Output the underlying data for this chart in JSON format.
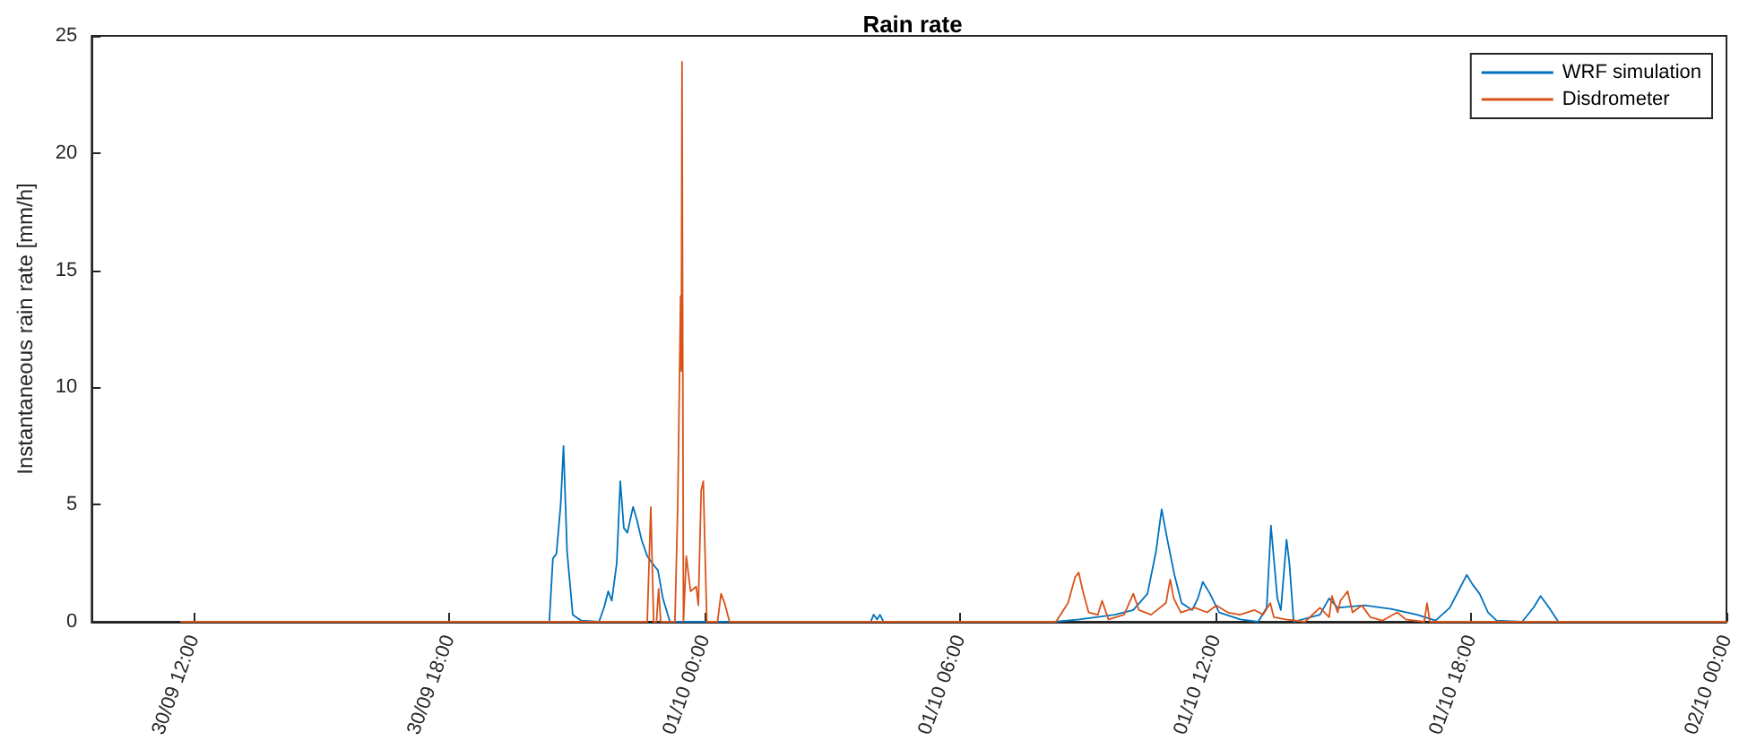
{
  "chart_data": {
    "type": "line",
    "title": "Rain rate",
    "ylabel": "Instantaneous rain rate [mm/h]",
    "xlim": [
      "--09-30T09:36",
      "--10-02T00:00"
    ],
    "xticks": [
      {
        "value": "--09-30T12:00",
        "label": "30/09 12:00"
      },
      {
        "value": "--09-30T18:00",
        "label": "30/09 18:00"
      },
      {
        "value": "--10-01T00:00",
        "label": "01/10 00:00"
      },
      {
        "value": "--10-01T06:00",
        "label": "01/10 06:00"
      },
      {
        "value": "--10-01T12:00",
        "label": "01/10 12:00"
      },
      {
        "value": "--10-01T18:00",
        "label": "01/10 18:00"
      },
      {
        "value": "--10-02T00:00",
        "label": "02/10 00:00"
      }
    ],
    "ylim": [
      0,
      25
    ],
    "yticks": [
      0,
      5,
      10,
      15,
      20,
      25
    ],
    "grid": false,
    "legend": "top right",
    "series": [
      {
        "name": "WRF simulation",
        "color": "#0072bd",
        "x": [
          "--09-30T11:42",
          "--09-30T20:21",
          "--09-30T20:26",
          "--09-30T20:31",
          "--09-30T20:37",
          "--09-30T20:41",
          "--09-30T20:46",
          "--09-30T20:54",
          "--09-30T21:06",
          "--09-30T21:31",
          "--09-30T21:38",
          "--09-30T21:44",
          "--09-30T21:49",
          "--09-30T21:56",
          "--09-30T22:01",
          "--09-30T22:06",
          "--09-30T22:11",
          "--09-30T22:19",
          "--09-30T22:24",
          "--09-30T22:31",
          "--09-30T22:39",
          "--09-30T22:46",
          "--09-30T22:54",
          "--09-30T23:01",
          "--09-30T23:11",
          "--10-01T03:54",
          "--10-01T03:58",
          "--10-01T04:03",
          "--10-01T04:07",
          "--10-01T04:12",
          "--10-01T08:13",
          "--10-01T08:48",
          "--10-01T09:38",
          "--10-01T10:04",
          "--10-01T10:24",
          "--10-01T10:36",
          "--10-01T10:44",
          "--10-01T10:52",
          "--10-01T11:02",
          "--10-01T11:12",
          "--10-01T11:27",
          "--10-01T11:35",
          "--10-01T11:42",
          "--10-01T11:52",
          "--10-01T12:05",
          "--10-01T12:35",
          "--10-01T13:00",
          "--10-01T13:12",
          "--10-01T13:18",
          "--10-01T13:27",
          "--10-01T13:32",
          "--10-01T13:40",
          "--10-01T13:44",
          "--10-01T13:50",
          "--10-01T14:27",
          "--10-01T14:40",
          "--10-01T14:52",
          "--10-01T15:30",
          "--10-01T16:07",
          "--10-01T16:44",
          "--10-01T17:10",
          "--10-01T17:30",
          "--10-01T17:42",
          "--10-01T17:54",
          "--10-01T18:02",
          "--10-01T18:12",
          "--10-01T18:24",
          "--10-01T18:36",
          "--10-01T19:12",
          "--10-01T19:28",
          "--10-01T19:38",
          "--10-01T19:50",
          "--10-01T20:03",
          "--10-02T00:00"
        ],
        "values": [
          0,
          0,
          2.7,
          2.9,
          5,
          7.5,
          3,
          0.3,
          0.05,
          0,
          0.6,
          1.3,
          0.9,
          2.5,
          6,
          4,
          3.8,
          4.9,
          4.4,
          3.5,
          2.8,
          2.5,
          2.2,
          1,
          0,
          0,
          0.3,
          0.1,
          0.3,
          0,
          0,
          0.1,
          0.3,
          0.5,
          1.2,
          3,
          4.8,
          3.5,
          2,
          0.8,
          0.5,
          1,
          1.7,
          1.2,
          0.4,
          0.1,
          0,
          0.6,
          4.1,
          1,
          0.5,
          3.5,
          2.5,
          0,
          0.3,
          1,
          0.6,
          0.7,
          0.55,
          0.3,
          0.05,
          0.6,
          1.3,
          2,
          1.6,
          1.2,
          0.4,
          0.05,
          0,
          0.6,
          1.1,
          0.6,
          0,
          0
        ]
      },
      {
        "name": "Disdrometer",
        "color": "#d95319",
        "x": [
          "--09-30T11:42",
          "--09-30T22:39",
          "--09-30T22:44",
          "--09-30T22:48",
          "--09-30T22:52",
          "--09-30T22:55",
          "--09-30T22:58",
          "--09-30T23:18",
          "--09-30T23:22",
          "--09-30T23:26",
          "--09-30T23:27",
          "--09-30T23:28",
          "--09-30T23:30",
          "--09-30T23:34",
          "--09-30T23:40",
          "--09-30T23:48",
          "--09-30T23:51",
          "--09-30T23:55",
          "--09-30T23:58",
          "--10-01T00:00",
          "--10-01T00:03",
          "--10-01T00:18",
          "--10-01T00:23",
          "--10-01T00:28",
          "--10-01T00:35",
          "--10-01T08:15",
          "--10-01T08:32",
          "--10-01T08:42",
          "--10-01T08:47",
          "--10-01T08:53",
          "--10-01T09:01",
          "--10-01T09:14",
          "--10-01T09:20",
          "--10-01T09:29",
          "--10-01T09:51",
          "--10-01T10:04",
          "--10-01T10:12",
          "--10-01T10:29",
          "--10-01T10:50",
          "--10-01T10:56",
          "--10-01T11:01",
          "--10-01T11:11",
          "--10-01T11:31",
          "--10-01T11:48",
          "--10-01T12:01",
          "--10-01T12:17",
          "--10-01T12:34",
          "--10-01T12:55",
          "--10-01T13:07",
          "--10-01T13:17",
          "--10-01T13:22",
          "--10-01T13:39",
          "--10-01T14:06",
          "--10-01T14:27",
          "--10-01T14:40",
          "--10-01T14:44",
          "--10-01T14:52",
          "--10-01T14:56",
          "--10-01T15:06",
          "--10-01T15:13",
          "--10-01T15:26",
          "--10-01T15:38",
          "--10-01T15:55",
          "--10-01T16:16",
          "--10-01T16:28",
          "--10-01T16:54",
          "--10-01T16:58",
          "--10-01T17:02",
          "--10-02T00:00"
        ],
        "values": [
          0,
          0,
          4.9,
          0,
          0,
          1.4,
          0,
          0,
          5,
          13.9,
          10.7,
          23.9,
          0,
          2.8,
          1.3,
          1.5,
          0.7,
          5.6,
          6,
          3.5,
          0,
          0,
          1.2,
          0.8,
          0,
          0,
          0.8,
          1.9,
          2.1,
          1.3,
          0.4,
          0.3,
          0.9,
          0.1,
          0.3,
          1.2,
          0.5,
          0.3,
          0.8,
          1.8,
          1,
          0.4,
          0.6,
          0.4,
          0.7,
          0.4,
          0.3,
          0.5,
          0.3,
          0.8,
          0.2,
          0.1,
          0,
          0.6,
          0.2,
          1.1,
          0.4,
          0.9,
          1.3,
          0.4,
          0.7,
          0.2,
          0.05,
          0.4,
          0.1,
          0,
          0.8,
          0,
          0
        ]
      }
    ]
  }
}
